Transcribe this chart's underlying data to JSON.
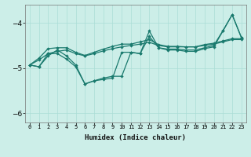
{
  "xlabel": "Humidex (Indice chaleur)",
  "background_color": "#cceee8",
  "line_color": "#1a7a6e",
  "grid_color": "#aaddd6",
  "x": [
    0,
    1,
    2,
    3,
    4,
    5,
    6,
    7,
    8,
    9,
    10,
    11,
    12,
    13,
    14,
    15,
    16,
    17,
    18,
    19,
    20,
    21,
    22,
    23
  ],
  "line1": [
    -4.93,
    -4.97,
    -4.68,
    -4.68,
    -4.8,
    -4.97,
    -5.35,
    -5.28,
    -5.25,
    -5.22,
    -4.65,
    -4.65,
    -4.68,
    -4.3,
    -4.55,
    -4.6,
    -4.6,
    -4.63,
    -4.63,
    -4.57,
    -4.53,
    -4.18,
    -3.82,
    -4.33
  ],
  "line2": [
    -4.93,
    -4.97,
    -4.73,
    -4.6,
    -4.73,
    -4.93,
    -5.35,
    -5.28,
    -5.22,
    -5.18,
    -5.18,
    -4.65,
    -4.68,
    -4.18,
    -4.55,
    -4.58,
    -4.58,
    -4.6,
    -4.6,
    -4.55,
    -4.5,
    -4.17,
    -3.82,
    -4.32
  ],
  "line3": [
    -4.93,
    -4.78,
    -4.57,
    -4.55,
    -4.55,
    -4.65,
    -4.72,
    -4.65,
    -4.58,
    -4.52,
    -4.47,
    -4.47,
    -4.42,
    -4.37,
    -4.48,
    -4.52,
    -4.52,
    -4.53,
    -4.53,
    -4.48,
    -4.45,
    -4.4,
    -4.35,
    -4.35
  ],
  "line4": [
    -4.93,
    -4.82,
    -4.68,
    -4.63,
    -4.6,
    -4.68,
    -4.73,
    -4.68,
    -4.62,
    -4.57,
    -4.53,
    -4.5,
    -4.47,
    -4.43,
    -4.5,
    -4.53,
    -4.53,
    -4.53,
    -4.53,
    -4.5,
    -4.47,
    -4.42,
    -4.37,
    -4.37
  ],
  "ylim": [
    -6.2,
    -3.6
  ],
  "xlim": [
    -0.5,
    23.5
  ],
  "yticks": [
    -6,
    -5,
    -4
  ],
  "xtick_fontsize": 5.0,
  "ytick_fontsize": 6.5,
  "xlabel_fontsize": 6.5
}
